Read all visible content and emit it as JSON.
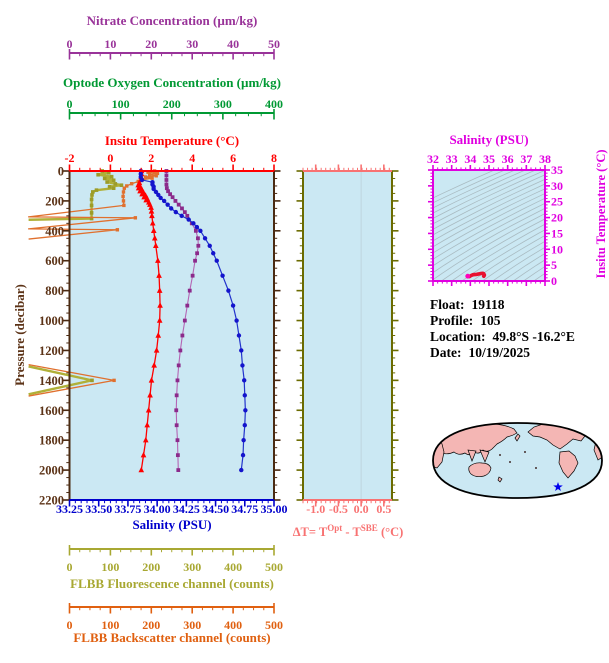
{
  "colors": {
    "nitrate": "#993399",
    "oxygen": "#009933",
    "temperature": "#ff0000",
    "pressure": "#5c3317",
    "plot_spine_brown": "#4a2a12",
    "salinity": "#0000cc",
    "salinity_curve": "#1414cc",
    "nitrate_curve": "#8b2a8b",
    "nitrate_line": "#b465b4",
    "delta_t": "#f87272",
    "delta_spine_olive": "#6b6b00",
    "fluorescence": "#a8a832",
    "backscatter": "#e06010",
    "ts_magenta": "#e000e0",
    "ts_profile": "#e81030",
    "ts_profile_tip": "#ff00bb",
    "ts_contour": "#a3b3b9",
    "plot_bg": "#cbe8f3",
    "map_land": "#f4b6b4",
    "map_ocean": "#cbe8f3",
    "map_outline": "#000000",
    "map_marker": "#0000ee",
    "zero_gridline": "#b6c9d2"
  },
  "axes": {
    "nitrate": {
      "title": "Nitrate Concentration (µm/kg)",
      "ticks": [
        "0",
        "10",
        "20",
        "30",
        "40",
        "50"
      ],
      "range": [
        0,
        50
      ],
      "minor": 2.5
    },
    "oxygen": {
      "title": "Optode Oxygen Concentration (µm/kg)",
      "ticks": [
        "0",
        "100",
        "200",
        "300",
        "400"
      ],
      "range": [
        0,
        400
      ],
      "minor": 25
    },
    "temperature": {
      "title": "Insitu Temperature (°C)",
      "ticks": [
        "-2",
        "0",
        "2",
        "4",
        "6",
        "8"
      ],
      "range": [
        -2,
        8
      ],
      "minor": 0.5
    },
    "salinity": {
      "title": "Salinity (PSU)",
      "ticks": [
        "33.25",
        "33.50",
        "33.75",
        "34.00",
        "34.25",
        "34.50",
        "34.75",
        "35.00"
      ],
      "range": [
        33.25,
        35.0
      ],
      "minor": 0.05
    },
    "pressure": {
      "title": "Pressure (decibar)",
      "ticks": [
        "0",
        "200",
        "400",
        "600",
        "800",
        "1000",
        "1200",
        "1400",
        "1600",
        "1800",
        "2000",
        "2200"
      ],
      "range": [
        0,
        2200
      ],
      "minor": 50
    },
    "delta_t": {
      "title_parts": {
        "t1": "ΔT= T",
        "sup1": "Opt",
        "t2": " - T",
        "sup2": "SBE",
        "t3": " (°C)"
      },
      "ticks": [
        "-1.0",
        "-0.5",
        "0.0",
        "0.5"
      ],
      "range": [
        -1.28,
        0.68
      ],
      "minor": 0.1
    },
    "fluorescence": {
      "title": "FLBB Fluorescence channel (counts)",
      "ticks": [
        "0",
        "100",
        "200",
        "300",
        "400",
        "500"
      ],
      "range": [
        0,
        500
      ],
      "minor": 25
    },
    "backscatter": {
      "title": "FLBB Backscatter channel (counts)",
      "ticks": [
        "0",
        "100",
        "200",
        "300",
        "400",
        "500"
      ],
      "range": [
        0,
        500
      ],
      "minor": 25
    },
    "ts_salinity": {
      "title": "Salinity (PSU)",
      "ticks": [
        "32",
        "33",
        "34",
        "35",
        "36",
        "37",
        "38"
      ],
      "range": [
        32,
        38
      ],
      "minor": 0.25
    },
    "ts_temperature": {
      "title": "Insitu Temperature (°C)",
      "ticks": [
        "0",
        "5",
        "10",
        "15",
        "20",
        "25",
        "30",
        "35"
      ],
      "range": [
        0,
        35
      ],
      "minor": 1
    }
  },
  "info": {
    "float_label": "Float:",
    "float_value": "19118",
    "profile_label": "Profile:",
    "profile_value": "105",
    "location_label": "Location:",
    "location_value": "49.8°S -16.2°E",
    "date_label": "Date:",
    "date_value": "10/19/2025"
  },
  "map": {
    "style": "world map, Pacific-centered, pink land on light blue ocean",
    "marker": {
      "shape": "star",
      "color": "#0000ee",
      "note": "profile position in South Atlantic"
    }
  },
  "chart_data": [
    {
      "type": "line",
      "title": "Float profile: property vs pressure",
      "ylabel": "Pressure (decibar)",
      "ylim": [
        0,
        2200
      ],
      "y_inverted": true,
      "grid": false,
      "series": [
        {
          "name": "Insitu Temperature (°C)",
          "marker": "triangle",
          "color": "#ff0000",
          "xlim": [
            -2,
            8
          ],
          "points": [
            [
              1.52,
              0
            ],
            [
              1.52,
              20
            ],
            [
              1.5,
              40
            ],
            [
              1.48,
              60
            ],
            [
              1.42,
              80
            ],
            [
              1.36,
              95
            ],
            [
              1.46,
              105
            ],
            [
              1.38,
              115
            ],
            [
              1.54,
              125
            ],
            [
              1.45,
              135
            ],
            [
              1.62,
              145
            ],
            [
              1.55,
              155
            ],
            [
              1.72,
              165
            ],
            [
              1.65,
              175
            ],
            [
              1.8,
              185
            ],
            [
              1.75,
              195
            ],
            [
              1.88,
              210
            ],
            [
              1.93,
              225
            ],
            [
              1.99,
              245
            ],
            [
              2.01,
              270
            ],
            [
              2.03,
              300
            ],
            [
              2.07,
              350
            ],
            [
              2.12,
              400
            ],
            [
              2.17,
              450
            ],
            [
              2.22,
              500
            ],
            [
              2.32,
              600
            ],
            [
              2.38,
              700
            ],
            [
              2.41,
              800
            ],
            [
              2.43,
              900
            ],
            [
              2.41,
              1000
            ],
            [
              2.34,
              1100
            ],
            [
              2.26,
              1200
            ],
            [
              2.14,
              1300
            ],
            [
              2.01,
              1400
            ],
            [
              1.94,
              1500
            ],
            [
              1.87,
              1600
            ],
            [
              1.8,
              1700
            ],
            [
              1.73,
              1800
            ],
            [
              1.62,
              1900
            ],
            [
              1.51,
              2000
            ]
          ]
        },
        {
          "name": "Salinity (PSU)",
          "marker": "circle",
          "color": "#1414cc",
          "xlim": [
            33.25,
            35.0
          ],
          "points": [
            [
              33.86,
              0
            ],
            [
              33.86,
              20
            ],
            [
              33.86,
              40
            ],
            [
              33.87,
              60
            ],
            [
              33.96,
              75
            ],
            [
              33.96,
              90
            ],
            [
              33.97,
              105
            ],
            [
              33.97,
              120
            ],
            [
              33.99,
              140
            ],
            [
              34.01,
              160
            ],
            [
              34.03,
              180
            ],
            [
              34.06,
              200
            ],
            [
              34.09,
              225
            ],
            [
              34.12,
              250
            ],
            [
              34.16,
              275
            ],
            [
              34.21,
              300
            ],
            [
              34.27,
              325
            ],
            [
              34.31,
              350
            ],
            [
              34.34,
              375
            ],
            [
              34.37,
              400
            ],
            [
              34.41,
              450
            ],
            [
              34.45,
              500
            ],
            [
              34.48,
              550
            ],
            [
              34.51,
              600
            ],
            [
              34.56,
              700
            ],
            [
              34.61,
              800
            ],
            [
              34.65,
              900
            ],
            [
              34.68,
              1000
            ],
            [
              34.7,
              1100
            ],
            [
              34.72,
              1200
            ],
            [
              34.73,
              1300
            ],
            [
              34.745,
              1400
            ],
            [
              34.75,
              1500
            ],
            [
              34.755,
              1600
            ],
            [
              34.75,
              1700
            ],
            [
              34.74,
              1800
            ],
            [
              34.735,
              1900
            ],
            [
              34.72,
              2000
            ]
          ]
        },
        {
          "name": "Nitrate Concentration (µm/kg)",
          "marker": "square",
          "color": "#8b2a8b",
          "xlim": [
            0,
            50
          ],
          "points": [
            [
              23.7,
              0
            ],
            [
              23.7,
              30
            ],
            [
              23.7,
              60
            ],
            [
              23.7,
              90
            ],
            [
              23.8,
              115
            ],
            [
              24.1,
              135
            ],
            [
              24.6,
              155
            ],
            [
              25.2,
              175
            ],
            [
              25.9,
              200
            ],
            [
              26.7,
              225
            ],
            [
              27.5,
              250
            ],
            [
              28.2,
              275
            ],
            [
              28.8,
              300
            ],
            [
              29.9,
              350
            ],
            [
              30.9,
              400
            ],
            [
              31.4,
              450
            ],
            [
              31.5,
              500
            ],
            [
              31.2,
              550
            ],
            [
              30.7,
              600
            ],
            [
              30.1,
              700
            ],
            [
              29.4,
              800
            ],
            [
              28.8,
              900
            ],
            [
              28.2,
              1000
            ],
            [
              27.6,
              1100
            ],
            [
              27.1,
              1200
            ],
            [
              26.7,
              1300
            ],
            [
              26.4,
              1400
            ],
            [
              26.2,
              1500
            ],
            [
              26.1,
              1600
            ],
            [
              26.2,
              1700
            ],
            [
              26.4,
              1800
            ],
            [
              26.5,
              1900
            ],
            [
              26.6,
              2000
            ]
          ]
        },
        {
          "name": "FLBB Fluorescence channel (counts)",
          "marker": "square",
          "color": "#b0b038",
          "xlim": [
            0,
            500
          ],
          "segments": [
            [
              [
                80,
                0
              ],
              [
                96,
                12
              ],
              [
                70,
                25
              ],
              [
                103,
                38
              ],
              [
                86,
                50
              ],
              [
                108,
                62
              ],
              [
                92,
                74
              ],
              [
                112,
                86
              ],
              [
                127,
                95
              ],
              [
                98,
                105
              ],
              [
                108,
                115
              ],
              [
                66,
                128
              ],
              [
                57,
                140
              ],
              [
                55,
                160
              ],
              [
                54,
                190
              ],
              [
                54,
                230
              ],
              [
                54,
                280
              ],
              [
                54,
                318
              ],
              [
                -100,
                326
              ]
            ],
            [
              [
                -100,
                1307
              ],
              [
                55,
                1400
              ],
              [
                -100,
                1493
              ]
            ]
          ]
        },
        {
          "name": "FLBB Backscatter channel (counts)",
          "marker": "square",
          "color": "#e0702e",
          "xlim": [
            0,
            500
          ],
          "segments": [
            [
              [
                208,
                0
              ],
              [
                192,
                8
              ],
              [
                215,
                16
              ],
              [
                196,
                24
              ],
              [
                212,
                32
              ],
              [
                186,
                40
              ],
              [
                202,
                48
              ],
              [
                178,
                58
              ],
              [
                168,
                70
              ],
              [
                152,
                85
              ],
              [
                140,
                100
              ],
              [
                134,
                115
              ],
              [
                132,
                140
              ],
              [
                131,
                170
              ],
              [
                132,
                200
              ],
              [
                133,
                230
              ],
              [
                -100,
                307
              ],
              [
                161,
                313
              ],
              [
                -100,
                387
              ],
              [
                117,
                393
              ],
              [
                -100,
                455
              ]
            ],
            [
              [
                -100,
                1295
              ],
              [
                109,
                1400
              ],
              [
                -100,
                1505
              ]
            ]
          ]
        }
      ],
      "note": "Optode Oxygen axis shown but no oxygen trace plotted; off-scale spikes poke left of the pressure axis near 300-450 and 1400 decibar"
    },
    {
      "type": "line",
      "title": "ΔT = T-Opt minus T-SBE vs pressure",
      "xlabel": "ΔT= T^Opt - T^SBE (°C)",
      "xlim": [
        -1.28,
        0.68
      ],
      "x_ticks": [
        -1.0,
        -0.5,
        0.0,
        0.5
      ],
      "ylim": [
        0,
        2200
      ],
      "series": [],
      "note": "panel empty except faint vertical gridline at 0.0"
    },
    {
      "type": "line",
      "title": "T-S diagram with density contours",
      "xlabel": "Salinity (PSU)",
      "xlim": [
        32,
        38
      ],
      "ylabel": "Insitu Temperature (°C)",
      "ylim": [
        0,
        35
      ],
      "series": [
        {
          "name": "profile T-S curve",
          "color": "#e81030",
          "points": [
            [
              33.86,
              1.52
            ],
            [
              33.87,
              1.45
            ],
            [
              33.96,
              1.4
            ],
            [
              33.99,
              1.55
            ],
            [
              34.03,
              1.7
            ],
            [
              34.06,
              1.78
            ],
            [
              34.12,
              1.95
            ],
            [
              34.21,
              2.02
            ],
            [
              34.31,
              2.07
            ],
            [
              34.37,
              2.12
            ],
            [
              34.41,
              2.18
            ],
            [
              34.45,
              2.22
            ],
            [
              34.51,
              2.3
            ],
            [
              34.56,
              2.36
            ],
            [
              34.61,
              2.4
            ],
            [
              34.68,
              2.41
            ],
            [
              34.7,
              2.35
            ],
            [
              34.72,
              2.27
            ],
            [
              34.73,
              2.15
            ],
            [
              34.745,
              2.01
            ],
            [
              34.75,
              1.94
            ],
            [
              34.755,
              1.87
            ],
            [
              34.75,
              1.8
            ],
            [
              34.74,
              1.73
            ],
            [
              34.735,
              1.62
            ],
            [
              34.72,
              1.51
            ]
          ]
        }
      ],
      "note": "gray isopycnal contour lines sweep from lower-left to upper-right"
    }
  ]
}
